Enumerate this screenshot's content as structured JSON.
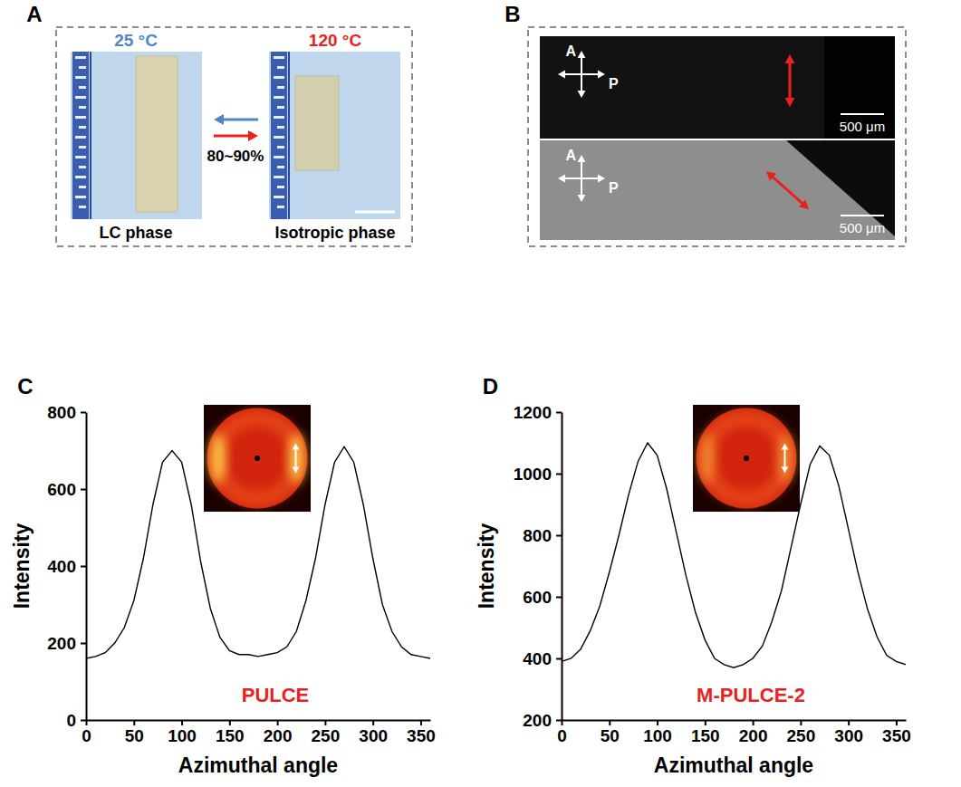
{
  "chart_data": [
    {
      "type": "line",
      "panel": "C",
      "annotations": [
        "PULCE"
      ],
      "x_label": "Azimuthal angle",
      "y_label": "Intensity",
      "x": [
        0,
        10,
        20,
        30,
        40,
        50,
        60,
        70,
        80,
        90,
        100,
        110,
        120,
        130,
        140,
        150,
        160,
        170,
        180,
        190,
        200,
        210,
        220,
        230,
        240,
        250,
        260,
        270,
        280,
        290,
        300,
        310,
        320,
        330,
        340,
        350,
        360
      ],
      "values": [
        160,
        165,
        175,
        200,
        240,
        310,
        420,
        560,
        670,
        700,
        670,
        560,
        410,
        290,
        215,
        180,
        170,
        170,
        165,
        170,
        175,
        190,
        230,
        310,
        420,
        560,
        670,
        710,
        670,
        560,
        420,
        300,
        230,
        190,
        170,
        165,
        160
      ],
      "color": "#000000",
      "xlim": [
        0,
        360
      ],
      "xticks": [
        0,
        50,
        100,
        150,
        200,
        250,
        300,
        350
      ],
      "ylim": [
        0,
        800
      ],
      "yticks": [
        0,
        200,
        400,
        600,
        800
      ]
    },
    {
      "type": "line",
      "panel": "D",
      "annotations": [
        "M-PULCE-2"
      ],
      "x_label": "Azimuthal angle",
      "y_label": "Intensity",
      "x": [
        0,
        10,
        20,
        30,
        40,
        50,
        60,
        70,
        80,
        90,
        100,
        110,
        120,
        130,
        140,
        150,
        160,
        170,
        180,
        190,
        200,
        210,
        220,
        230,
        240,
        250,
        260,
        270,
        280,
        290,
        300,
        310,
        320,
        330,
        340,
        350,
        360
      ],
      "values": [
        390,
        400,
        430,
        490,
        570,
        680,
        800,
        930,
        1040,
        1100,
        1060,
        950,
        810,
        670,
        550,
        460,
        400,
        380,
        370,
        380,
        400,
        440,
        520,
        620,
        760,
        900,
        1030,
        1090,
        1060,
        960,
        820,
        680,
        560,
        470,
        410,
        390,
        380
      ],
      "color": "#000000",
      "xlim": [
        0,
        360
      ],
      "xticks": [
        0,
        50,
        100,
        150,
        200,
        250,
        300,
        350
      ],
      "ylim": [
        200,
        1200
      ],
      "yticks": [
        200,
        400,
        600,
        800,
        1000,
        1200
      ]
    }
  ],
  "panel_a": {
    "label": "A",
    "left_temperature": "25 °C",
    "right_temperature": "120 °C",
    "ratio": "80~90%",
    "left_caption": "LC phase",
    "right_caption": "Isotropic phase"
  },
  "panel_b": {
    "label": "B",
    "images": [
      {
        "analyzer": "A",
        "polarizer": "P",
        "scale_bar": "500 μm"
      },
      {
        "analyzer": "A",
        "polarizer": "P",
        "scale_bar": "500 μm"
      }
    ]
  }
}
